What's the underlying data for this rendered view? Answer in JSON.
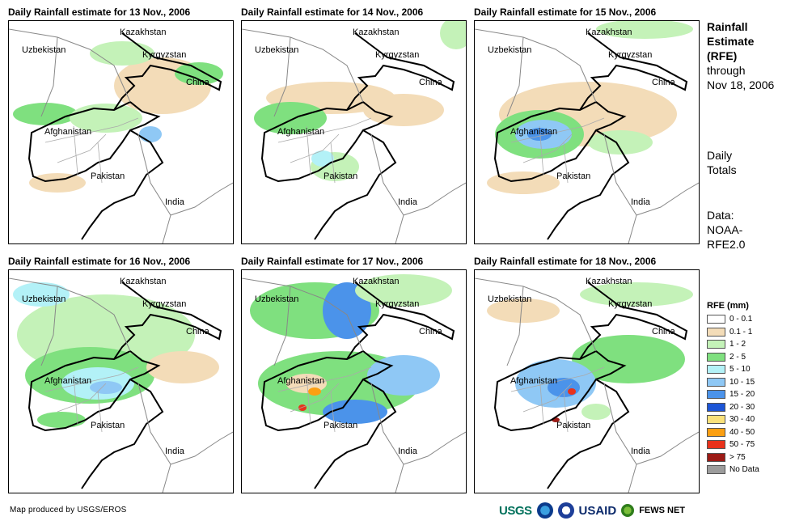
{
  "panels": [
    {
      "title": "Daily Rainfall estimate for 13 Nov., 2006"
    },
    {
      "title": "Daily Rainfall estimate for 14 Nov., 2006"
    },
    {
      "title": "Daily Rainfall estimate for 15 Nov., 2006"
    },
    {
      "title": "Daily Rainfall estimate for 16 Nov., 2006"
    },
    {
      "title": "Daily Rainfall estimate for 17 Nov., 2006"
    },
    {
      "title": "Daily Rainfall estimate for 18 Nov., 2006"
    }
  ],
  "places": {
    "kazakhstan": "Kazakhstan",
    "uzbekistan": "Uzbekistan",
    "kyrgyzstan": "Kyrgyzstan",
    "china": "China",
    "afghanistan": "Afghanistan",
    "pakistan": "Pakistan",
    "india": "India"
  },
  "sidebar": {
    "title_lines": [
      "Rainfall",
      "Estimate",
      "(RFE)"
    ],
    "through": "through",
    "date": "Nov 18, 2006",
    "daily": "Daily",
    "totals": "Totals",
    "data_label": "Data:",
    "data_source_1": "NOAA-",
    "data_source_2": "RFE2.0"
  },
  "legend": {
    "title": "RFE (mm)",
    "items": [
      {
        "label": "0 - 0.1",
        "color": "#ffffff"
      },
      {
        "label": "0.1 - 1",
        "color": "#f3dcb8"
      },
      {
        "label": "1 - 2",
        "color": "#c4f2b8"
      },
      {
        "label": "2 - 5",
        "color": "#7fe07f"
      },
      {
        "label": "5 - 10",
        "color": "#b3f1f7"
      },
      {
        "label": "10 - 15",
        "color": "#8fc8f5"
      },
      {
        "label": "15 - 20",
        "color": "#4b93ea"
      },
      {
        "label": "20 - 30",
        "color": "#1c55d6"
      },
      {
        "label": "30 - 40",
        "color": "#fae17a"
      },
      {
        "label": "40 - 50",
        "color": "#fb9f12"
      },
      {
        "label": "50 - 75",
        "color": "#e8321b"
      },
      {
        "label": "> 75",
        "color": "#9c1b16"
      },
      {
        "label": "No Data",
        "color": "#9c9c9c"
      }
    ]
  },
  "credit": "Map produced by USGS/EROS",
  "logos": {
    "usgs": "USGS",
    "usaid": "USAID",
    "fews": "FEWS NET"
  }
}
